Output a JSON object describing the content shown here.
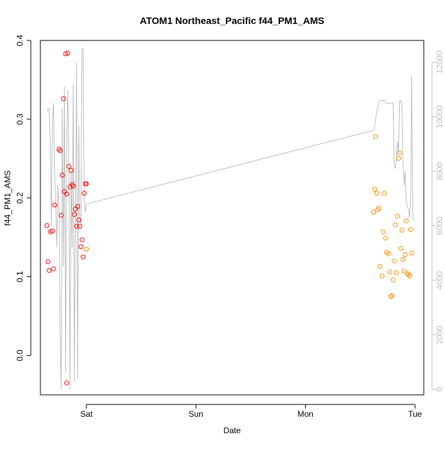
{
  "chart_data": {
    "type": "scatter",
    "title": "ATOM1 Northeast_Pacific f44_PM1_AMS",
    "xlabel": "Date",
    "ylabel": "f44_PM1_AMS",
    "x_ticks": [
      "Sat",
      "Sun",
      "Mon",
      "Tue"
    ],
    "y_ticks": [
      "0.0",
      "0.1",
      "0.2",
      "0.3",
      "0.4"
    ],
    "y2_ticks": [
      "0",
      "2000",
      "4000",
      "6000",
      "8000",
      "10000",
      "12000"
    ],
    "xlim_days": [
      -0.42,
      3.08
    ],
    "ylim": [
      -0.05,
      0.4
    ],
    "y2lim": [
      -200,
      12800
    ],
    "colors": {
      "series1": "#ff0000",
      "series2": "#ff8c00",
      "line": "#bdbdbd",
      "axis": "#000000",
      "axis2": "#bdbdbd"
    },
    "series": [
      {
        "color": "#ff0000",
        "x": [
          -0.36,
          -0.35,
          -0.34,
          -0.33,
          -0.31,
          -0.3,
          -0.29,
          -0.25,
          -0.24,
          -0.23,
          -0.22,
          -0.21,
          -0.2,
          -0.19,
          -0.18,
          -0.18,
          -0.17,
          -0.16,
          -0.15,
          -0.14,
          -0.13,
          -0.12,
          -0.11,
          -0.1,
          -0.09,
          -0.08,
          -0.07,
          -0.06,
          -0.05,
          -0.04,
          -0.03,
          -0.02,
          -0.01,
          0.0
        ],
        "y": [
          0.165,
          0.119,
          0.108,
          0.157,
          0.158,
          0.11,
          0.191,
          0.262,
          0.26,
          0.178,
          0.229,
          0.326,
          0.208,
          0.383,
          0.205,
          -0.035,
          0.384,
          0.24,
          0.214,
          0.235,
          0.217,
          0.215,
          0.179,
          0.186,
          0.164,
          0.189,
          0.172,
          0.164,
          0.138,
          0.147,
          0.125,
          0.206,
          0.218,
          0.218
        ]
      },
      {
        "color": "#ff8c00",
        "x": [
          0.0,
          2.62,
          2.63,
          2.64,
          2.65,
          2.66,
          2.67,
          2.68,
          2.7,
          2.71,
          2.72,
          2.73,
          2.74,
          2.76,
          2.77,
          2.78,
          2.79,
          2.8,
          2.81,
          2.82,
          2.83,
          2.84,
          2.85,
          2.86,
          2.87,
          2.88,
          2.89,
          2.9,
          2.91,
          2.92,
          2.93,
          2.94,
          2.95,
          2.96,
          2.97
        ],
        "y": [
          0.135,
          0.182,
          0.211,
          0.278,
          0.206,
          0.185,
          0.187,
          0.113,
          0.101,
          0.157,
          0.206,
          0.149,
          0.131,
          0.129,
          0.106,
          0.075,
          0.076,
          0.096,
          0.12,
          0.166,
          0.105,
          0.177,
          0.25,
          0.257,
          0.136,
          0.159,
          0.122,
          0.107,
          0.128,
          0.171,
          0.104,
          0.103,
          0.101,
          0.16,
          0.13
        ]
      }
    ],
    "line_y2": {
      "x": [
        -0.36,
        -0.35,
        -0.34,
        -0.33,
        -0.32,
        -0.31,
        -0.3,
        -0.29,
        -0.28,
        -0.27,
        -0.26,
        -0.25,
        -0.24,
        -0.23,
        -0.22,
        -0.21,
        -0.2,
        -0.19,
        -0.18,
        -0.17,
        -0.16,
        -0.15,
        -0.14,
        -0.13,
        -0.12,
        -0.11,
        -0.1,
        -0.09,
        -0.08,
        -0.07,
        -0.06,
        -0.05,
        -0.04,
        -0.03,
        -0.02,
        -0.01,
        0.0,
        2.62,
        2.63,
        2.64,
        2.65,
        2.66,
        2.67,
        2.68,
        2.7,
        2.72,
        2.74,
        2.76,
        2.78,
        2.8,
        2.81,
        2.82,
        2.83,
        2.84,
        2.85,
        2.86,
        2.87,
        2.88,
        2.89,
        2.9,
        2.91,
        2.92,
        2.93,
        2.94,
        2.95,
        2.96,
        2.97,
        2.98,
        2.99
      ],
      "y": [
        10200,
        10300,
        10300,
        9000,
        6000,
        9800,
        10500,
        8000,
        6800,
        5200,
        7500,
        6600,
        2000,
        0,
        10300,
        4500,
        11100,
        600,
        9000,
        11000,
        8500,
        0,
        8000,
        5200,
        11200,
        300,
        6100,
        12000,
        400,
        9700,
        6300,
        6000,
        12500,
        12500,
        7000,
        6500,
        6800,
        9500,
        9600,
        9900,
        10200,
        10300,
        10600,
        10600,
        10600,
        10600,
        10500,
        10500,
        10500,
        10500,
        8300,
        8100,
        8400,
        9100,
        8700,
        10600,
        10600,
        10400,
        8400,
        7500,
        8000,
        6900,
        6700,
        6600,
        6300,
        7000,
        11500,
        6300,
        6200
      ]
    }
  }
}
